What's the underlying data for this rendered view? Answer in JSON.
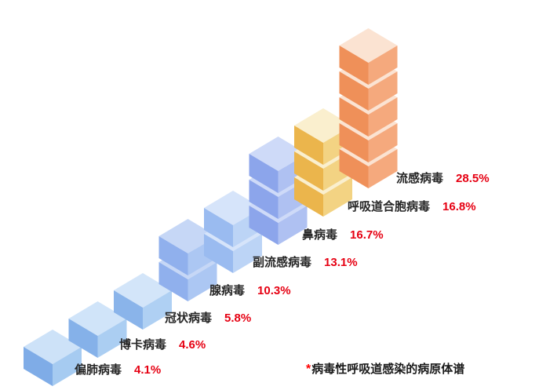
{
  "page": {
    "background_color": "#ffffff",
    "label_text_color": "#262626",
    "percent_text_color": "#e60012"
  },
  "chart_data": {
    "type": "bar",
    "variant": "isometric-cube-stack",
    "title": "",
    "xlabel": "",
    "ylabel": "",
    "legend": "none",
    "grid": false,
    "unit": "%",
    "categories": [
      "偏肺病毒",
      "博卡病毒",
      "冠状病毒",
      "腺病毒",
      "副流感病毒",
      "鼻病毒",
      "呼吸道合胞病毒",
      "流感病毒"
    ],
    "values": [
      4.1,
      4.6,
      5.8,
      10.3,
      13.1,
      16.7,
      16.8,
      28.5
    ],
    "items": [
      {
        "name": "偏肺病毒",
        "value": 4.1,
        "percent_display": "4.1%",
        "cubes": 1,
        "colors": {
          "left": "#7FACE7",
          "right": "#A6CBF1",
          "top": "#CDE2F8"
        }
      },
      {
        "name": "博卡病毒",
        "value": 4.6,
        "percent_display": "4.6%",
        "cubes": 1,
        "colors": {
          "left": "#85B1E9",
          "right": "#ABCEF2",
          "top": "#D0E4F9"
        }
      },
      {
        "name": "冠状病毒",
        "value": 5.8,
        "percent_display": "5.8%",
        "cubes": 1,
        "colors": {
          "left": "#8AB4EA",
          "right": "#AFD0F3",
          "top": "#D3E5F9"
        }
      },
      {
        "name": "腺病毒",
        "value": 10.3,
        "percent_display": "10.3%",
        "cubes": 2,
        "colors": {
          "left": "#90B0ED",
          "right": "#ACC7F3",
          "top": "#C6D7F6"
        }
      },
      {
        "name": "副流感病毒",
        "value": 13.1,
        "percent_display": "13.1%",
        "cubes": 2,
        "colors": {
          "left": "#9ABBF0",
          "right": "#BCD4F6",
          "top": "#D6E4FA"
        }
      },
      {
        "name": "鼻病毒",
        "value": 16.7,
        "percent_display": "16.7%",
        "cubes": 3,
        "colors": {
          "left": "#8CA5EB",
          "right": "#AFC1F2",
          "top": "#CEDAF8"
        }
      },
      {
        "name": "呼吸道合胞病毒",
        "value": 16.8,
        "percent_display": "16.8%",
        "cubes": 3,
        "colors": {
          "left": "#EBB54C",
          "right": "#F3D383",
          "top": "#FAEFCE"
        }
      },
      {
        "name": "流感病毒",
        "value": 28.5,
        "percent_display": "28.5%",
        "cubes": 5,
        "colors": {
          "left": "#EF9059",
          "right": "#F5A97D",
          "top": "#FBE3D2"
        }
      }
    ],
    "footnote": {
      "marker": "*",
      "marker_color": "#ff0000",
      "text": "病毒性呼吸道感染的病原体谱"
    }
  }
}
